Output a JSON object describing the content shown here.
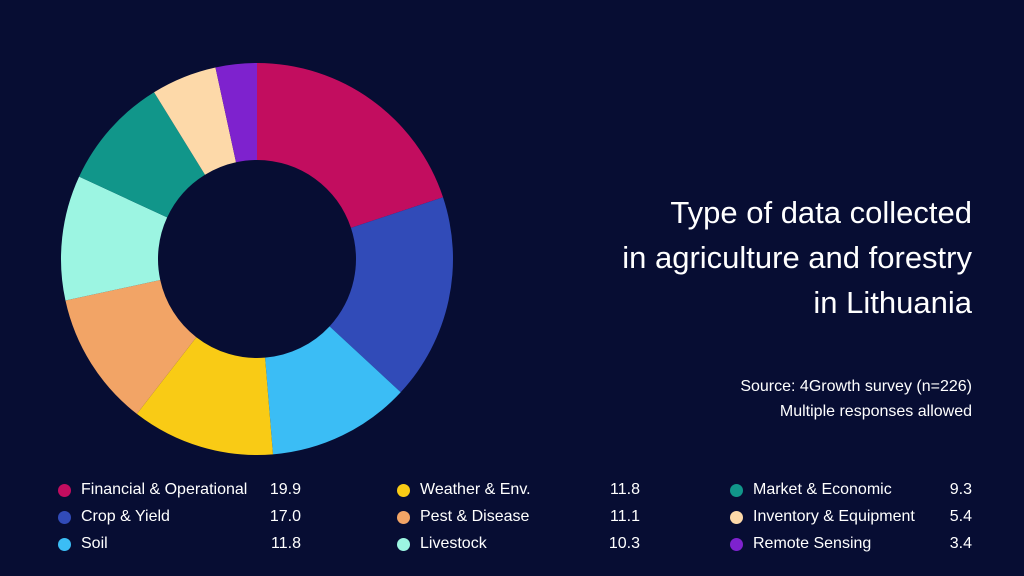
{
  "chart_data": {
    "type": "pie",
    "subtype": "donut",
    "title": "Type of data collected in agriculture and forestry in Lithuania",
    "title_lines": [
      "Type of data collected",
      "in agriculture and forestry",
      "in Lithuania"
    ],
    "source_lines": [
      "Source: 4Growth survey (n=226)",
      "Multiple responses allowed"
    ],
    "legend_placement": "bottom",
    "slices": [
      {
        "label": "Financial & Operational",
        "value": "19.9",
        "color": "#c20d5f"
      },
      {
        "label": "Crop & Yield",
        "value": "17.0",
        "color": "#314bb8"
      },
      {
        "label": "Soil",
        "value": "11.8",
        "color": "#3bbdf5"
      },
      {
        "label": "Weather & Env.",
        "value": "11.8",
        "color": "#f9cb15"
      },
      {
        "label": "Pest & Disease",
        "value": "11.1",
        "color": "#f2a466"
      },
      {
        "label": "Livestock",
        "value": "10.3",
        "color": "#9cf5e2"
      },
      {
        "label": "Market & Economic",
        "value": "9.3",
        "color": "#11968a"
      },
      {
        "label": "Inventory & Equipment",
        "value": "5.4",
        "color": "#fdd9a9"
      },
      {
        "label": "Remote Sensing",
        "value": "3.4",
        "color": "#7e22ce"
      }
    ]
  }
}
